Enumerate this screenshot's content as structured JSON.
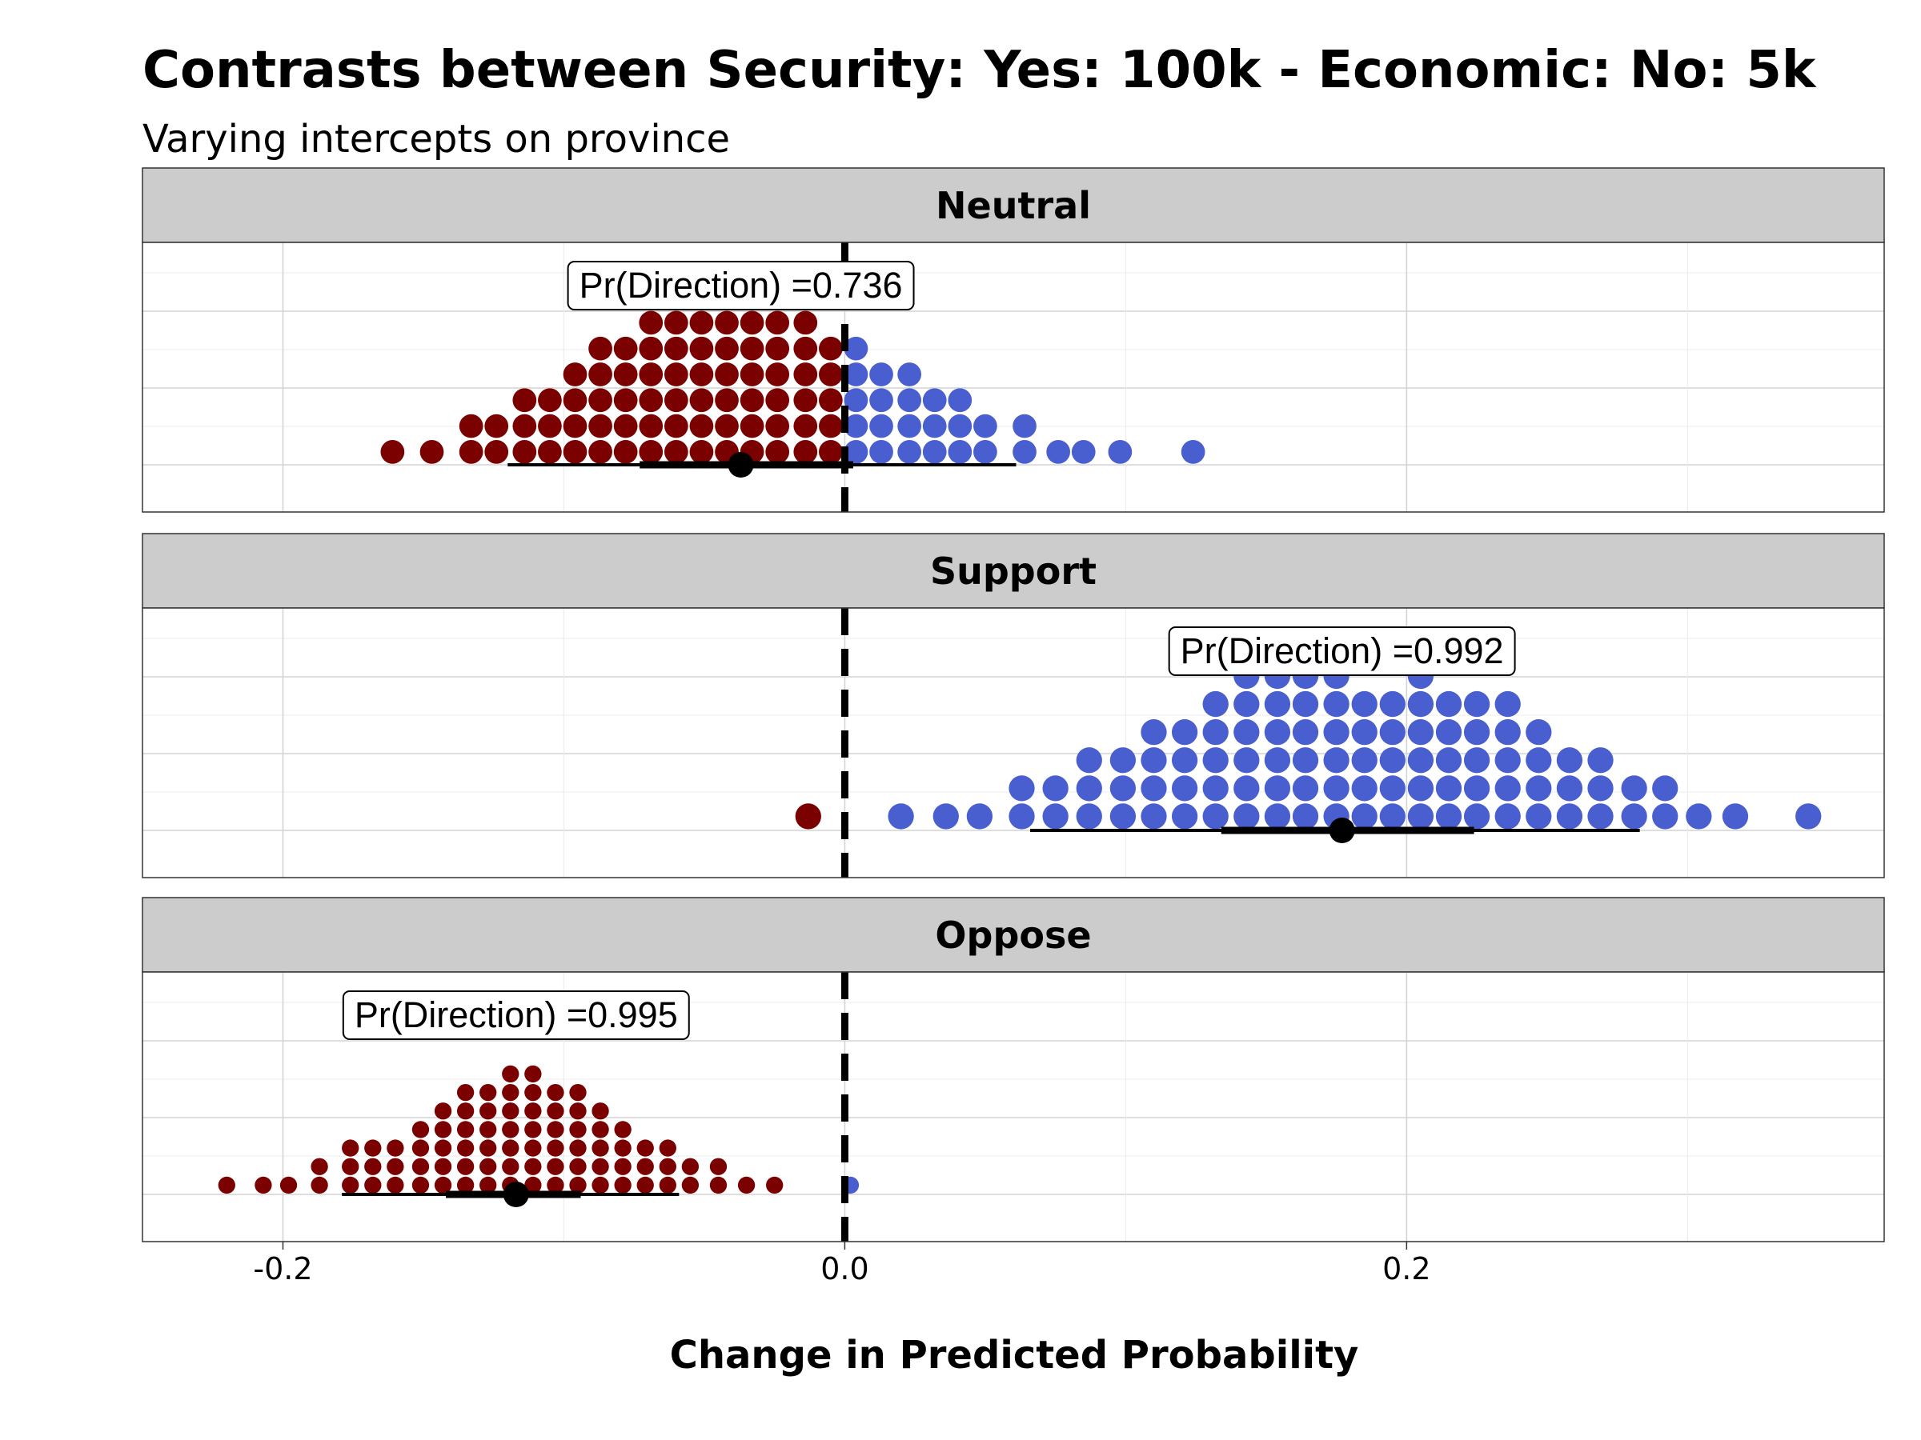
{
  "chart_data": {
    "type": "dotplot",
    "title": "Contrasts between Security: Yes: 100k - Economic: No: 5k",
    "subtitle": "Varying intercepts on province",
    "xlabel": "Change in Predicted Probability",
    "xlim": [
      -0.25,
      0.37
    ],
    "x_ticks": [
      -0.2,
      0.0,
      0.2
    ],
    "x_tick_labels": [
      "-0.2",
      "0.0",
      "0.2"
    ],
    "reference_line": 0,
    "colors": {
      "negative": "#7B0000",
      "positive": "#4A5FCF",
      "strip": "#CCCCCC",
      "grid": "#DDDDDD"
    },
    "panels": [
      {
        "label": "Neutral",
        "annotation": "Pr(Direction) =0.736",
        "annotation_x": -0.037,
        "median": -0.037,
        "interval_66": [
          -0.073,
          0.003
        ],
        "interval_95": [
          -0.12,
          0.061
        ],
        "dot_diameter": 0.0092,
        "dot_stacks": [
          {
            "x": -0.161,
            "n": 1
          },
          {
            "x": -0.147,
            "n": 1
          },
          {
            "x": -0.133,
            "n": 2
          },
          {
            "x": -0.124,
            "n": 2
          },
          {
            "x": -0.114,
            "n": 3
          },
          {
            "x": -0.105,
            "n": 3
          },
          {
            "x": -0.096,
            "n": 4
          },
          {
            "x": -0.087,
            "n": 5
          },
          {
            "x": -0.078,
            "n": 5
          },
          {
            "x": -0.069,
            "n": 6
          },
          {
            "x": -0.06,
            "n": 6
          },
          {
            "x": -0.051,
            "n": 6
          },
          {
            "x": -0.042,
            "n": 6
          },
          {
            "x": -0.033,
            "n": 6
          },
          {
            "x": -0.024,
            "n": 6
          },
          {
            "x": -0.014,
            "n": 6
          },
          {
            "x": -0.005,
            "n": 5
          },
          {
            "x": 0.004,
            "n": 5
          },
          {
            "x": 0.013,
            "n": 4
          },
          {
            "x": 0.023,
            "n": 4
          },
          {
            "x": 0.032,
            "n": 3
          },
          {
            "x": 0.041,
            "n": 3
          },
          {
            "x": 0.05,
            "n": 2
          },
          {
            "x": 0.064,
            "n": 2
          },
          {
            "x": 0.076,
            "n": 1
          },
          {
            "x": 0.085,
            "n": 1
          },
          {
            "x": 0.098,
            "n": 1
          },
          {
            "x": 0.124,
            "n": 1
          }
        ]
      },
      {
        "label": "Support",
        "annotation": "Pr(Direction) =0.992",
        "annotation_x": 0.177,
        "median": 0.177,
        "interval_66": [
          0.134,
          0.224
        ],
        "interval_95": [
          0.066,
          0.283
        ],
        "dot_diameter": 0.01,
        "dot_stacks": [
          {
            "x": -0.013,
            "n": 1
          },
          {
            "x": 0.02,
            "n": 1
          },
          {
            "x": 0.036,
            "n": 1
          },
          {
            "x": 0.048,
            "n": 1
          },
          {
            "x": 0.063,
            "n": 2
          },
          {
            "x": 0.075,
            "n": 2
          },
          {
            "x": 0.087,
            "n": 3
          },
          {
            "x": 0.099,
            "n": 3
          },
          {
            "x": 0.11,
            "n": 4
          },
          {
            "x": 0.121,
            "n": 4
          },
          {
            "x": 0.132,
            "n": 5
          },
          {
            "x": 0.143,
            "n": 6
          },
          {
            "x": 0.154,
            "n": 6
          },
          {
            "x": 0.164,
            "n": 6
          },
          {
            "x": 0.175,
            "n": 6
          },
          {
            "x": 0.185,
            "n": 5
          },
          {
            "x": 0.195,
            "n": 5
          },
          {
            "x": 0.205,
            "n": 6
          },
          {
            "x": 0.215,
            "n": 5
          },
          {
            "x": 0.225,
            "n": 5
          },
          {
            "x": 0.236,
            "n": 5
          },
          {
            "x": 0.247,
            "n": 4
          },
          {
            "x": 0.258,
            "n": 3
          },
          {
            "x": 0.269,
            "n": 3
          },
          {
            "x": 0.281,
            "n": 2
          },
          {
            "x": 0.292,
            "n": 2
          },
          {
            "x": 0.304,
            "n": 1
          },
          {
            "x": 0.317,
            "n": 1
          },
          {
            "x": 0.343,
            "n": 1
          }
        ]
      },
      {
        "label": "Oppose",
        "annotation": "Pr(Direction) =0.995",
        "annotation_x": -0.117,
        "median": -0.117,
        "interval_66": [
          -0.142,
          -0.094
        ],
        "interval_95": [
          -0.179,
          -0.059
        ],
        "dot_diameter": 0.0066,
        "dot_stacks": [
          {
            "x": -0.22,
            "n": 1
          },
          {
            "x": -0.207,
            "n": 1
          },
          {
            "x": -0.198,
            "n": 1
          },
          {
            "x": -0.187,
            "n": 2
          },
          {
            "x": -0.176,
            "n": 3
          },
          {
            "x": -0.168,
            "n": 3
          },
          {
            "x": -0.16,
            "n": 3
          },
          {
            "x": -0.151,
            "n": 4
          },
          {
            "x": -0.143,
            "n": 5
          },
          {
            "x": -0.135,
            "n": 6
          },
          {
            "x": -0.127,
            "n": 6
          },
          {
            "x": -0.119,
            "n": 7
          },
          {
            "x": -0.111,
            "n": 7
          },
          {
            "x": -0.103,
            "n": 6
          },
          {
            "x": -0.095,
            "n": 6
          },
          {
            "x": -0.087,
            "n": 5
          },
          {
            "x": -0.079,
            "n": 4
          },
          {
            "x": -0.071,
            "n": 3
          },
          {
            "x": -0.063,
            "n": 3
          },
          {
            "x": -0.055,
            "n": 2
          },
          {
            "x": -0.045,
            "n": 2
          },
          {
            "x": -0.035,
            "n": 1
          },
          {
            "x": -0.025,
            "n": 1
          },
          {
            "x": 0.002,
            "n": 1
          }
        ]
      }
    ]
  }
}
